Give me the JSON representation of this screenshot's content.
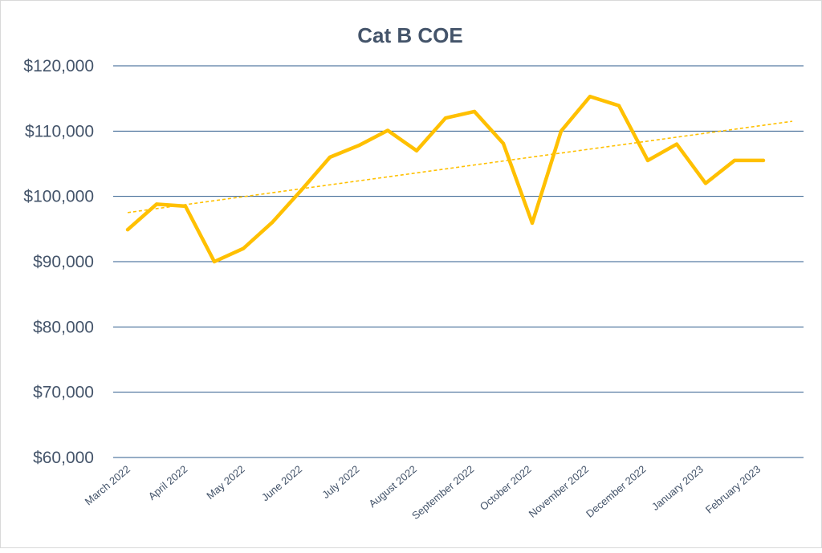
{
  "chart_data": {
    "type": "line",
    "title": "Cat B COE",
    "xlabel": "",
    "ylabel": "",
    "ylim": [
      60000,
      120000
    ],
    "yticks": [
      60000,
      70000,
      80000,
      90000,
      100000,
      110000,
      120000
    ],
    "ytick_labels": [
      "$60,000",
      "$70,000",
      "$80,000",
      "$90,000",
      "$100,000",
      "$110,000",
      "$120,000"
    ],
    "x_tick_labels": [
      "March 2022",
      "April 2022",
      "May 2022",
      "June 2022",
      "July 2022",
      "August 2022",
      "September 2022",
      "October 2022",
      "November 2022",
      "December 2022",
      "January 2023",
      "February 2023"
    ],
    "grid": true,
    "legend": "none",
    "series": [
      {
        "values": [
          94900,
          98800,
          98500,
          90000,
          92000,
          96000,
          100900,
          106000,
          107800,
          110100,
          107000,
          112000,
          113000,
          108100,
          95900,
          110000,
          115300,
          113900,
          105500,
          108000,
          102000,
          105500,
          105500
        ],
        "color": "#ffc000"
      }
    ],
    "trendline": {
      "type": "linear",
      "color": "#ffc000",
      "style": "dashed"
    }
  }
}
